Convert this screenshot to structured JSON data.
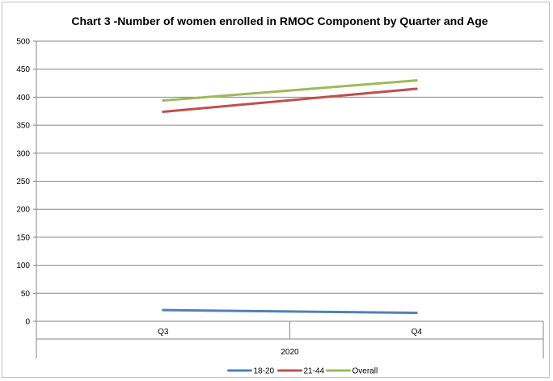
{
  "chart_data": {
    "type": "line",
    "title": "Chart 3 -Number of women enrolled in RMOC Component by Quarter and Age",
    "xlabel": "",
    "ylabel": "",
    "categories": [
      "Q3",
      "Q4"
    ],
    "category_group": "2020",
    "ylim": [
      0,
      500
    ],
    "yticks": [
      "0",
      "50",
      "100",
      "150",
      "200",
      "250",
      "300",
      "350",
      "400",
      "450",
      "500"
    ],
    "grid": true,
    "legend_position": "bottom",
    "series": [
      {
        "name": "18-20",
        "color": "#4f81bd",
        "values": [
          20,
          15
        ]
      },
      {
        "name": "21-44",
        "color": "#c0504d",
        "values": [
          374,
          415
        ]
      },
      {
        "name": "Overall",
        "color": "#9bbb59",
        "values": [
          394,
          430
        ]
      }
    ]
  }
}
